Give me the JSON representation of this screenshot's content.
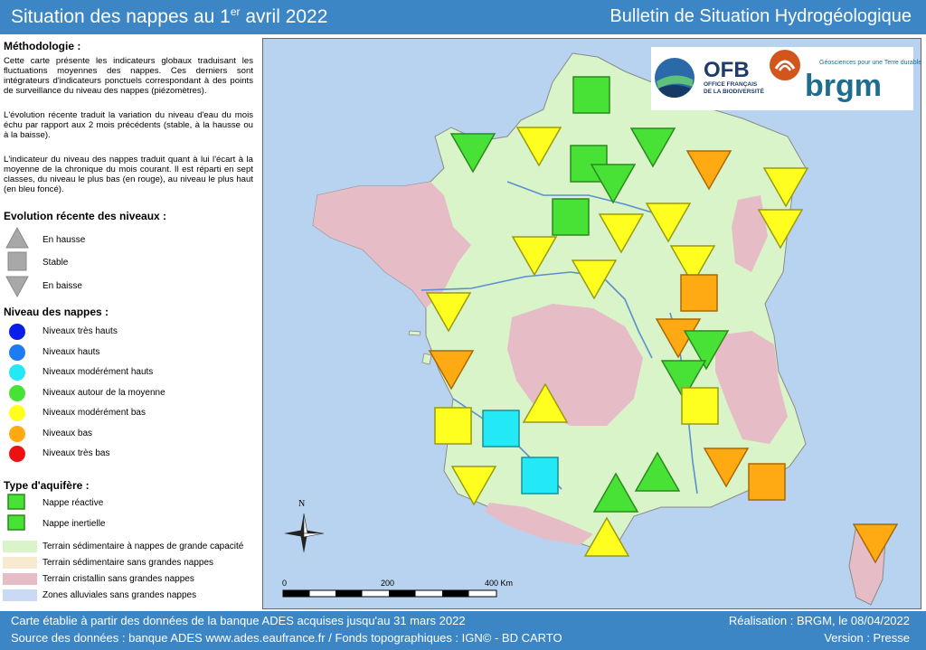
{
  "header": {
    "title_main": "Situation des nappes au 1",
    "title_sup": "er",
    "title_rest": " avril 2022",
    "bulletin": "Bulletin de Situation Hydrogéologique"
  },
  "methodology": {
    "title": "Méthodologie :",
    "p1": "Cette carte présente les indicateurs globaux traduisant les fluctuations moyennes des nappes. Ces derniers sont intégrateurs d'indicateurs ponctuels correspondant à des points de surveillance du niveau des nappes (piézomètres).",
    "p2": "L'évolution récente traduit la variation du niveau d'eau du mois échu par rapport aux 2 mois précédents (stable, à la hausse ou à la baisse).",
    "p3": "L'indicateur du niveau des nappes traduit quant à lui l'écart à la moyenne de la chronique du mois courant. Il est réparti en sept classes, du niveau le plus bas (en rouge), au niveau le plus haut (en bleu foncé)."
  },
  "evolution": {
    "title": "Evolution récente des niveaux :",
    "items": [
      "En hausse",
      "Stable",
      "En baisse"
    ]
  },
  "levels": {
    "title": "Niveau des nappes :",
    "items": [
      {
        "label": "Niveaux très hauts",
        "color": "#0a1ee8"
      },
      {
        "label": "Niveaux hauts",
        "color": "#1d7cf2"
      },
      {
        "label": "Niveaux modérément hauts",
        "color": "#23e8f5"
      },
      {
        "label": "Niveaux autour de la moyenne",
        "color": "#48e236"
      },
      {
        "label": "Niveaux modérément bas",
        "color": "#ffff1f"
      },
      {
        "label": "Niveaux bas",
        "color": "#ffaa12"
      },
      {
        "label": "Niveaux très bas",
        "color": "#ee1111"
      }
    ]
  },
  "aquifer": {
    "title": "Type d'aquifère :",
    "items": [
      "Nappe réactive",
      "Nappe inertielle"
    ],
    "terrain": [
      {
        "label": "Terrain sédimentaire à nappes de grande capacité",
        "color": "#d9f4c9"
      },
      {
        "label": "Terrain sédimentaire sans grandes nappes",
        "color": "#f8ead0"
      },
      {
        "label": "Terrain cristallin sans grandes nappes",
        "color": "#e6bcc6"
      },
      {
        "label": "Zones alluviales sans grandes nappes",
        "color": "#cbdaf4"
      }
    ]
  },
  "logos": {
    "ofb": "OFB",
    "ofb_sub1": "OFFICE FRANÇAIS",
    "ofb_sub2": "DE LA BIODIVERSITÉ",
    "brgm": "brgm",
    "brgm_sub": "Géosciences pour une Terre durable"
  },
  "map": {
    "north": "N",
    "scale": [
      "0",
      "200",
      "400 Km"
    ],
    "symbols": [
      {
        "shape": "square",
        "level": 3
      },
      {
        "shape": "down",
        "level": 4
      },
      {
        "shape": "down",
        "level": 3
      },
      {
        "shape": "square",
        "level": 3
      },
      {
        "shape": "down",
        "level": 3
      },
      {
        "shape": "down",
        "level": 3
      },
      {
        "shape": "down",
        "level": 5
      },
      {
        "shape": "down",
        "level": 4
      },
      {
        "shape": "square",
        "level": 3
      },
      {
        "shape": "down",
        "level": 4
      },
      {
        "shape": "down",
        "level": 4
      },
      {
        "shape": "down",
        "level": 4
      },
      {
        "shape": "down",
        "level": 4
      },
      {
        "shape": "down",
        "level": 4
      },
      {
        "shape": "down",
        "level": 4
      },
      {
        "shape": "down",
        "level": 4
      },
      {
        "shape": "square",
        "level": 5
      },
      {
        "shape": "down",
        "level": 5
      },
      {
        "shape": "down",
        "level": 5
      },
      {
        "shape": "down",
        "level": 5
      },
      {
        "shape": "down",
        "level": 3
      },
      {
        "shape": "down",
        "level": 3
      },
      {
        "shape": "square",
        "level": 4
      },
      {
        "shape": "square",
        "level": 4
      },
      {
        "shape": "square",
        "level": 2
      },
      {
        "shape": "up",
        "level": 4
      },
      {
        "shape": "square",
        "level": 2
      },
      {
        "shape": "down",
        "level": 4
      },
      {
        "shape": "up",
        "level": 3
      },
      {
        "shape": "up",
        "level": 3
      },
      {
        "shape": "down",
        "level": 5
      },
      {
        "shape": "square",
        "level": 5
      },
      {
        "shape": "up",
        "level": 4
      },
      {
        "shape": "down",
        "level": 5
      }
    ]
  },
  "footer": {
    "line1": "Carte établie à partir des données de la banque ADES acquises jusqu'au 31 mars 2022",
    "line2": "Source des données : banque ADES www.ades.eaufrance.fr / Fonds topographiques : IGN© - BD CARTO",
    "credit": "Réalisation : BRGM, le 08/04/2022",
    "version": "Version : Presse"
  }
}
